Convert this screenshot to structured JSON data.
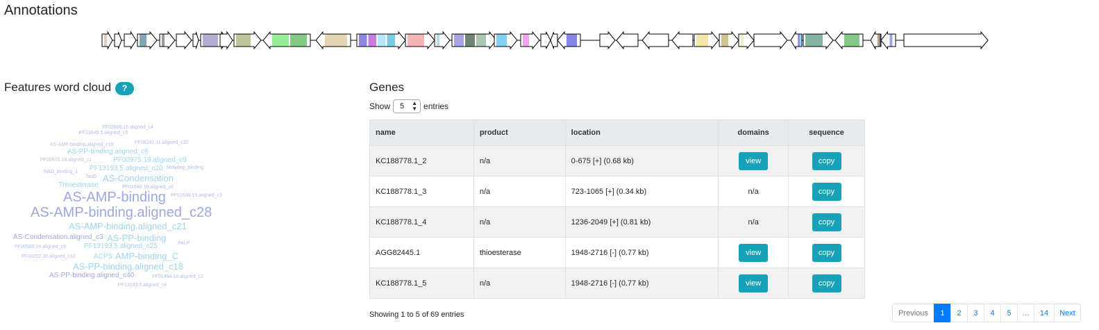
{
  "page": {
    "title": "Annotations"
  },
  "cluster_map": {
    "genes": [
      {
        "dir": "fwd",
        "domains": [
          {
            "color": "#ddd2bf"
          }
        ]
      },
      {
        "dir": "fwd",
        "domains": []
      },
      {
        "dir": "fwd",
        "domains": []
      },
      {
        "dir": "fwd",
        "domains": [
          {
            "color": "#7fa7b5"
          }
        ]
      },
      {
        "dir": "fwd",
        "domains": [
          {
            "color": "#999999"
          }
        ]
      },
      {
        "dir": "fwd",
        "domains": []
      },
      {
        "dir": "fwd",
        "domains": []
      },
      {
        "dir": "fwd",
        "domains": [
          {
            "color": "#b3acd3"
          }
        ]
      },
      {
        "dir": "fwd",
        "domains": []
      },
      {
        "dir": "fwd",
        "domains": [
          {
            "color": "#bec59a"
          }
        ]
      },
      {
        "dir": "rev",
        "domains": [
          {
            "color": "#98ee98"
          },
          {
            "color": "#84c984"
          }
        ]
      },
      {
        "dir": "rev",
        "domains": [
          {
            "color": "#e2d5b1"
          }
        ]
      },
      {
        "dir": "fwd",
        "domains": [
          {
            "color": "#8986e5"
          },
          {
            "color": "#c77cdd"
          },
          {
            "color": "#b6e7fb"
          },
          {
            "color": "#79cde8"
          }
        ]
      },
      {
        "dir": "fwd",
        "domains": [
          {
            "color": "#f5b5b5"
          }
        ]
      },
      {
        "dir": "fwd",
        "domains": [
          {
            "color": "#b6daf0"
          }
        ]
      },
      {
        "dir": "fwd",
        "domains": [
          {
            "color": "#a9a4e6"
          },
          {
            "color": "#6f8673"
          },
          {
            "color": "#a9c7b2"
          }
        ]
      },
      {
        "dir": "fwd",
        "domains": [
          {
            "color": "#81d1f0"
          }
        ]
      },
      {
        "dir": "fwd",
        "domains": [
          {
            "color": "#f2a4f0"
          }
        ]
      },
      {
        "dir": "fwd",
        "domains": []
      },
      {
        "dir": "rev",
        "domains": []
      },
      {
        "dir": "rev",
        "domains": [
          {
            "color": "#8585ea"
          }
        ]
      },
      {
        "dir": "fwd",
        "domains": []
      },
      {
        "dir": "rev",
        "domains": []
      },
      {
        "dir": "rev",
        "domains": []
      },
      {
        "dir": "rev",
        "domains": []
      },
      {
        "dir": "fwd",
        "domains": [
          {
            "color": "#f2e6a9"
          }
        ]
      },
      {
        "dir": "fwd",
        "domains": [
          {
            "color": "#cfc38f"
          }
        ]
      },
      {
        "dir": "fwd",
        "domains": [
          {
            "color": "#e4f5c8"
          }
        ]
      },
      {
        "dir": "fwd",
        "domains": []
      },
      {
        "dir": "rev",
        "domains": [
          {
            "color": "#8c8be8"
          },
          {
            "color": "#9fd8ff"
          }
        ]
      },
      {
        "dir": "fwd",
        "domains": [
          {
            "color": "#84b3a2"
          }
        ]
      },
      {
        "dir": "rev",
        "domains": [
          {
            "color": "#86c986"
          }
        ]
      },
      {
        "dir": "rev",
        "domains": [
          {
            "color": "#b0a08c"
          },
          {
            "color": "#6a5a7a"
          }
        ]
      },
      {
        "dir": "rev",
        "domains": [
          {
            "color": "#9da6e0"
          }
        ]
      },
      {
        "dir": "fwd",
        "domains": []
      },
      {
        "dir": "fwd",
        "domains": [
          {
            "color": "#d6d0dc"
          },
          {
            "color": "#e8a0c0"
          },
          {
            "color": "#d6c5c5"
          },
          {
            "color": "#9e9aa8"
          },
          {
            "color": "#d8c08c"
          }
        ]
      }
    ]
  },
  "word_cloud": {
    "title": "Features word cloud",
    "help_label": "?",
    "words": [
      {
        "text": "PF02668.15.aligned_c4",
        "color": "#b3bcea"
      },
      {
        "text": "PF13649.5.aligned_c3",
        "color": "#b3bcea"
      },
      {
        "text": "AS-AMP-binding.aligned_c19",
        "color": "#b3bcea"
      },
      {
        "text": "PF08241.11.aligned_c32",
        "color": "#b3bcea"
      },
      {
        "text": "AS-PP-binding.aligned_c6",
        "color": "#9fd5ec"
      },
      {
        "text": "PF00975.19.aligned_c1",
        "color": "#b3bcea"
      },
      {
        "text": "PF00975.19.aligned_c9",
        "color": "#9fd5ec"
      },
      {
        "text": "NAD_binding_1",
        "color": "#b3bcea"
      },
      {
        "text": "PF13193.5.aligned_c20",
        "color": "#9fd5ec"
      },
      {
        "text": "Molydop_binding",
        "color": "#b3bcea"
      },
      {
        "text": "TauD",
        "color": "#b3bcea"
      },
      {
        "text": "AS-Condensation",
        "color": "#9fd5ec"
      },
      {
        "text": "Thioesterase",
        "color": "#9fd5ec"
      },
      {
        "text": "PF01648.19.aligned_c6",
        "color": "#b3bcea"
      },
      {
        "text": "AS-AMP-binding",
        "color": "#9ea7df"
      },
      {
        "text": "PF01648.19.aligned_c3",
        "color": "#b3bcea"
      },
      {
        "text": "AS-AMP-binding.aligned_c28",
        "color": "#9ea7df"
      },
      {
        "text": "AS-AMP-binding.aligned_c21",
        "color": "#9fd5ec"
      },
      {
        "text": "AS-Condensation.aligned_c3",
        "color": "#9ea7df"
      },
      {
        "text": "AS-PP-binding",
        "color": "#9fd5ec"
      },
      {
        "text": "PALP",
        "color": "#b3bcea"
      },
      {
        "text": "PF00503.24.aligned_c9",
        "color": "#b3bcea"
      },
      {
        "text": "PF13193.5.aligned_c25",
        "color": "#9fd5ec"
      },
      {
        "text": "PF00202.20.aligned_c12",
        "color": "#b3bcea"
      },
      {
        "text": "ACPS",
        "color": "#9fd5ec"
      },
      {
        "text": "AMP-binding_C",
        "color": "#9fd5ec"
      },
      {
        "text": "AS-PP-binding.aligned_c18",
        "color": "#9fd5ec"
      },
      {
        "text": "AS-PP-binding.aligned_c40",
        "color": "#9ea7df"
      },
      {
        "text": "PF01494.18.aligned_c2",
        "color": "#b3bcea"
      },
      {
        "text": "PF13193.5.aligned_c4",
        "color": "#b3bcea"
      }
    ]
  },
  "genes_section": {
    "title": "Genes",
    "show_label": "Show",
    "page_size": "5",
    "entries_label": "entries",
    "columns": {
      "name": "name",
      "product": "product",
      "location": "location",
      "domains": "domains",
      "sequence": "sequence"
    },
    "rows": [
      {
        "name": "KC188778.1_2",
        "product": "n/a",
        "location": "0-675 [+] (0.68 kb)",
        "domains": "view",
        "sequence": "copy"
      },
      {
        "name": "KC188778.1_3",
        "product": "n/a",
        "location": "723-1065 [+] (0.34 kb)",
        "domains": "n/a",
        "sequence": "copy"
      },
      {
        "name": "KC188778.1_4",
        "product": "n/a",
        "location": "1236-2049 [+] (0.81 kb)",
        "domains": "n/a",
        "sequence": "copy"
      },
      {
        "name": "AGG82445.1",
        "product": "thioesterase",
        "location": "1948-2716 [-] (0.77 kb)",
        "domains": "view",
        "sequence": "copy"
      },
      {
        "name": "KC188778.1_5",
        "product": "n/a",
        "location": "1948-2716 [-] (0.77 kb)",
        "domains": "view",
        "sequence": "copy"
      }
    ],
    "info": "Showing 1 to 5 of 69 entries",
    "pagination": {
      "previous": "Previous",
      "pages": [
        "1",
        "2",
        "3",
        "4",
        "5",
        "…",
        "14"
      ],
      "next": "Next",
      "active_page": "1"
    }
  }
}
